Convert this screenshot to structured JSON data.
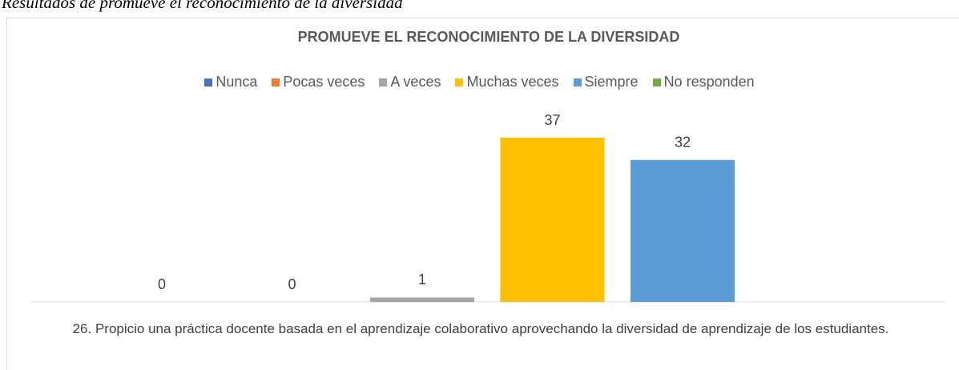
{
  "chart_data": {
    "type": "bar",
    "caption": "Resultados de promueve el reconocimiento de la diversidad",
    "title": "PROMUEVE EL RECONOCIMIENTO DE LA DIVERSIDAD",
    "categories": [
      "26. Propicio una práctica docente basada en el aprendizaje colaborativo aprovechando la diversidad de aprendizaje de los estudiantes."
    ],
    "series": [
      {
        "name": "Nunca",
        "color": "#4472c4",
        "values": [
          0
        ]
      },
      {
        "name": "Pocas veces",
        "color": "#ed7d31",
        "values": [
          0
        ]
      },
      {
        "name": "A veces",
        "color": "#a5a5a5",
        "values": [
          1
        ]
      },
      {
        "name": "Muchas veces",
        "color": "#ffc000",
        "values": [
          37
        ]
      },
      {
        "name": "Siempre",
        "color": "#5b9bd5",
        "values": [
          32
        ]
      },
      {
        "name": "No responden",
        "color": "#70ad47",
        "values": [
          null
        ]
      }
    ],
    "legend": "top"
  }
}
